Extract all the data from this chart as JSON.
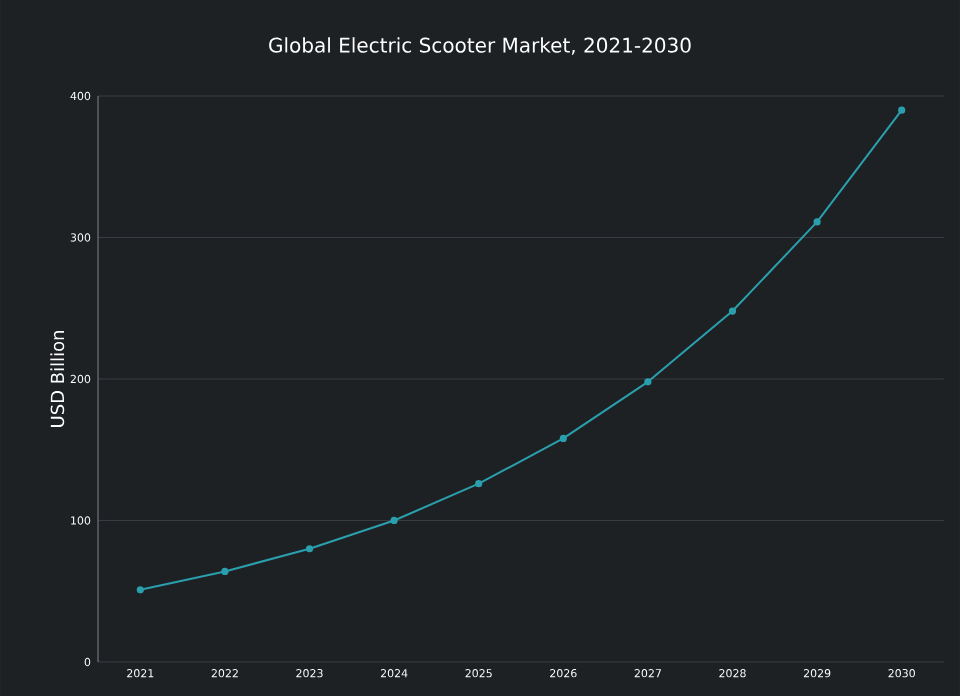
{
  "chart_data": {
    "type": "line",
    "title": "Global Electric Scooter Market, 2021-2030",
    "ylabel": "USD Billion",
    "categories": [
      "2021",
      "2022",
      "2023",
      "2024",
      "2025",
      "2026",
      "2027",
      "2028",
      "2029",
      "2030"
    ],
    "series": [
      {
        "color": "#2a9fae",
        "values": [
          51,
          64,
          80,
          100,
          126,
          158,
          198,
          248,
          311,
          390
        ]
      }
    ],
    "ylim": [
      0,
      400
    ],
    "yticks": [
      0,
      100,
      200,
      300,
      400
    ],
    "grid": "y",
    "marker": "circle",
    "line_style": "solid"
  }
}
